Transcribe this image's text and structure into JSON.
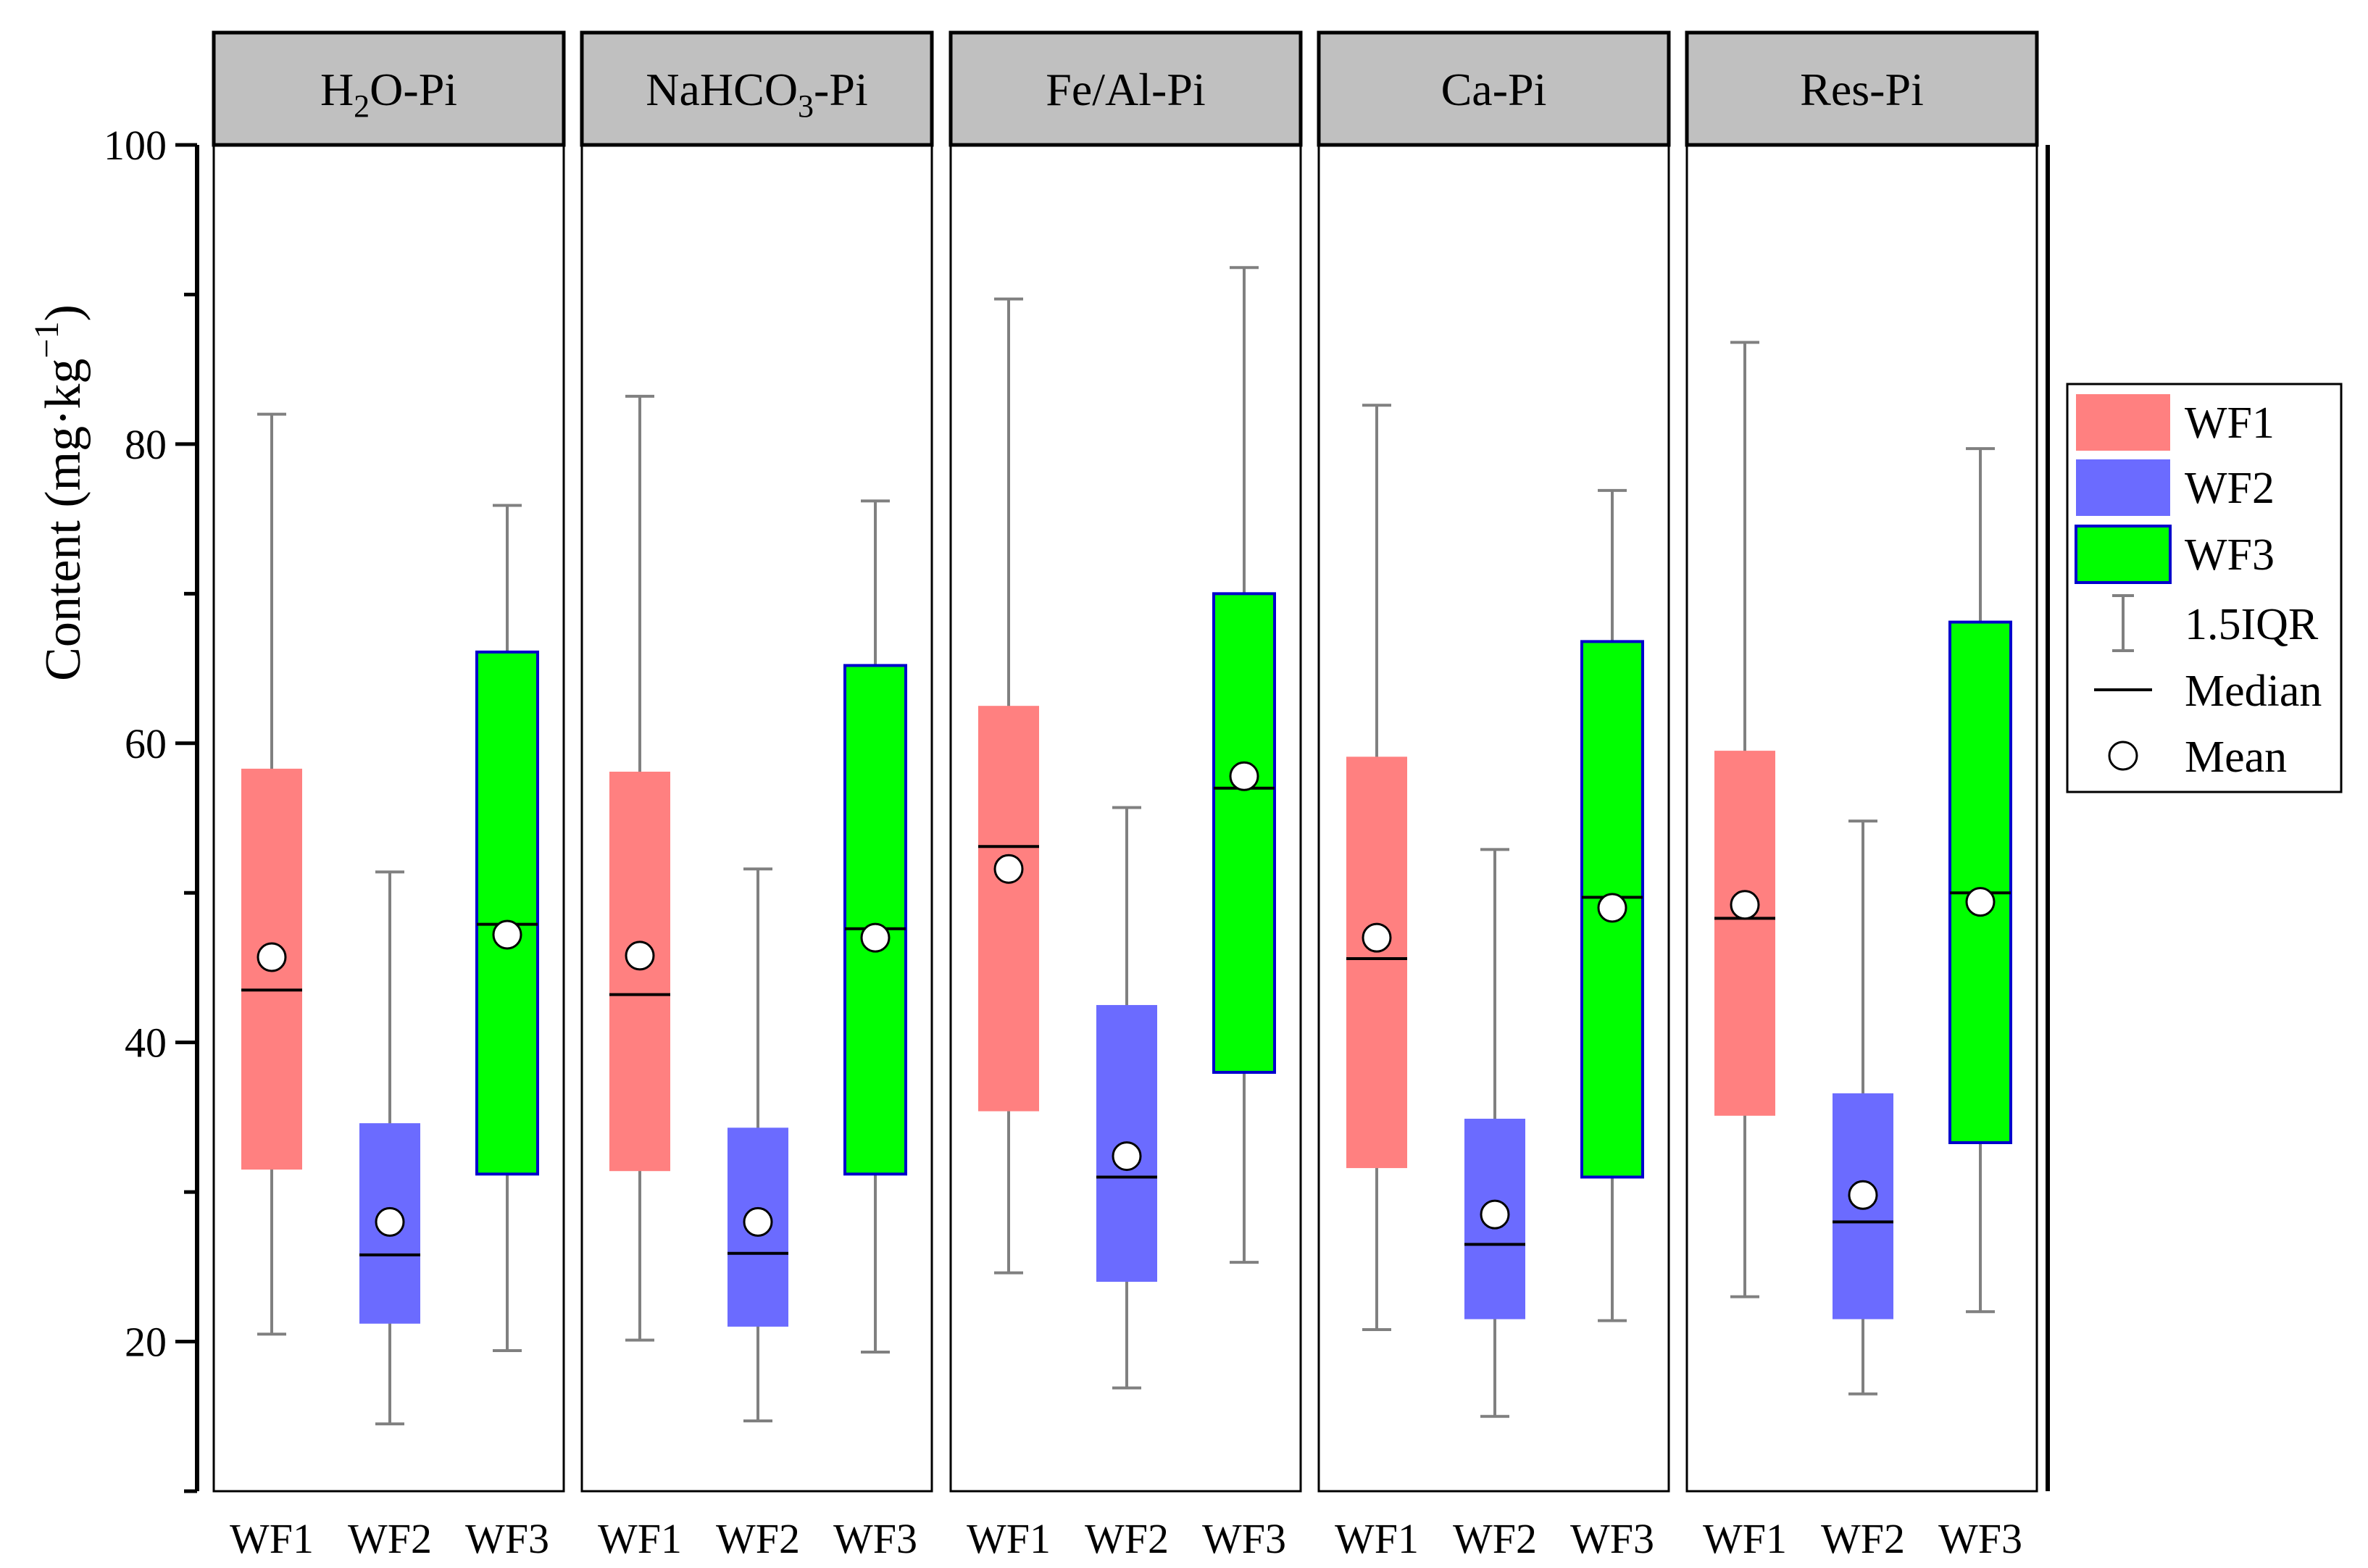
{
  "chart_data": {
    "type": "boxplot",
    "ylabel": "Content (mg·kg⁻¹)",
    "ylabel_base": "Content (mg·kg",
    "ylabel_sup": "−1",
    "ylabel_close": ")",
    "ylim": [
      10,
      100
    ],
    "yticks": [
      20,
      40,
      60,
      80,
      100
    ],
    "categories": [
      "WF1",
      "WF2",
      "WF3"
    ],
    "colors": {
      "WF1": "#ff8080",
      "WF2": "#6b6bff",
      "WF3": "#00ff00",
      "WF3_border": "#0000cc",
      "whisker": "#808080",
      "header_fill": "#c0c0c0"
    },
    "panels": [
      {
        "title": "H2O-Pi",
        "title_main": "H",
        "title_sub": "2",
        "title_rest": "O-Pi",
        "boxes": [
          {
            "name": "WF1",
            "whisker_low": 20.5,
            "q1": 31.5,
            "median": 43.5,
            "q3": 58.3,
            "whisker_high": 82.0,
            "mean": 45.7
          },
          {
            "name": "WF2",
            "whisker_low": 14.5,
            "q1": 21.2,
            "median": 25.8,
            "q3": 34.6,
            "whisker_high": 51.4,
            "mean": 28.0
          },
          {
            "name": "WF3",
            "whisker_low": 19.4,
            "q1": 31.2,
            "median": 47.9,
            "q3": 66.1,
            "whisker_high": 75.9,
            "mean": 47.2
          }
        ]
      },
      {
        "title": "NaHCO3-Pi",
        "title_main": "NaHCO",
        "title_sub": "3",
        "title_rest": "-Pi",
        "boxes": [
          {
            "name": "WF1",
            "whisker_low": 20.1,
            "q1": 31.4,
            "median": 43.2,
            "q3": 58.1,
            "whisker_high": 83.2,
            "mean": 45.8
          },
          {
            "name": "WF2",
            "whisker_low": 14.7,
            "q1": 21.0,
            "median": 25.9,
            "q3": 34.3,
            "whisker_high": 51.6,
            "mean": 28.0
          },
          {
            "name": "WF3",
            "whisker_low": 19.3,
            "q1": 31.2,
            "median": 47.6,
            "q3": 65.2,
            "whisker_high": 76.2,
            "mean": 47.0
          }
        ]
      },
      {
        "title": "Fe/Al-Pi",
        "title_main": "Fe/Al-Pi",
        "title_sub": "",
        "title_rest": "",
        "boxes": [
          {
            "name": "WF1",
            "whisker_low": 24.6,
            "q1": 35.4,
            "median": 53.1,
            "q3": 62.5,
            "whisker_high": 89.7,
            "mean": 51.6
          },
          {
            "name": "WF2",
            "whisker_low": 16.9,
            "q1": 24.0,
            "median": 31.0,
            "q3": 42.5,
            "whisker_high": 55.7,
            "mean": 32.4
          },
          {
            "name": "WF3",
            "whisker_low": 25.3,
            "q1": 38.0,
            "median": 57.0,
            "q3": 70.0,
            "whisker_high": 91.8,
            "mean": 57.8
          }
        ]
      },
      {
        "title": "Ca-Pi",
        "title_main": "Ca-Pi",
        "title_sub": "",
        "title_rest": "",
        "boxes": [
          {
            "name": "WF1",
            "whisker_low": 20.8,
            "q1": 31.6,
            "median": 45.6,
            "q3": 59.1,
            "whisker_high": 82.6,
            "mean": 47.0
          },
          {
            "name": "WF2",
            "whisker_low": 15.0,
            "q1": 21.5,
            "median": 26.5,
            "q3": 34.9,
            "whisker_high": 52.9,
            "mean": 28.5
          },
          {
            "name": "WF3",
            "whisker_low": 21.4,
            "q1": 31.0,
            "median": 49.7,
            "q3": 66.8,
            "whisker_high": 76.9,
            "mean": 49.0
          }
        ]
      },
      {
        "title": "Res-Pi",
        "title_main": "Res-Pi",
        "title_sub": "",
        "title_rest": "",
        "boxes": [
          {
            "name": "WF1",
            "whisker_low": 23.0,
            "q1": 35.1,
            "median": 48.3,
            "q3": 59.5,
            "whisker_high": 86.8,
            "mean": 49.2
          },
          {
            "name": "WF2",
            "whisker_low": 16.5,
            "q1": 21.5,
            "median": 28.0,
            "q3": 36.6,
            "whisker_high": 54.8,
            "mean": 29.8
          },
          {
            "name": "WF3",
            "whisker_low": 22.0,
            "q1": 33.3,
            "median": 50.0,
            "q3": 68.1,
            "whisker_high": 79.7,
            "mean": 49.4
          }
        ]
      }
    ],
    "legend": {
      "position": "right",
      "items": [
        {
          "type": "box",
          "key": "WF1",
          "label": "WF1"
        },
        {
          "type": "box",
          "key": "WF2",
          "label": "WF2"
        },
        {
          "type": "box",
          "key": "WF3",
          "label": "WF3"
        },
        {
          "type": "whisker",
          "label": "1.5IQR"
        },
        {
          "type": "median",
          "label": "Median"
        },
        {
          "type": "mean",
          "label": "Mean"
        }
      ]
    }
  }
}
